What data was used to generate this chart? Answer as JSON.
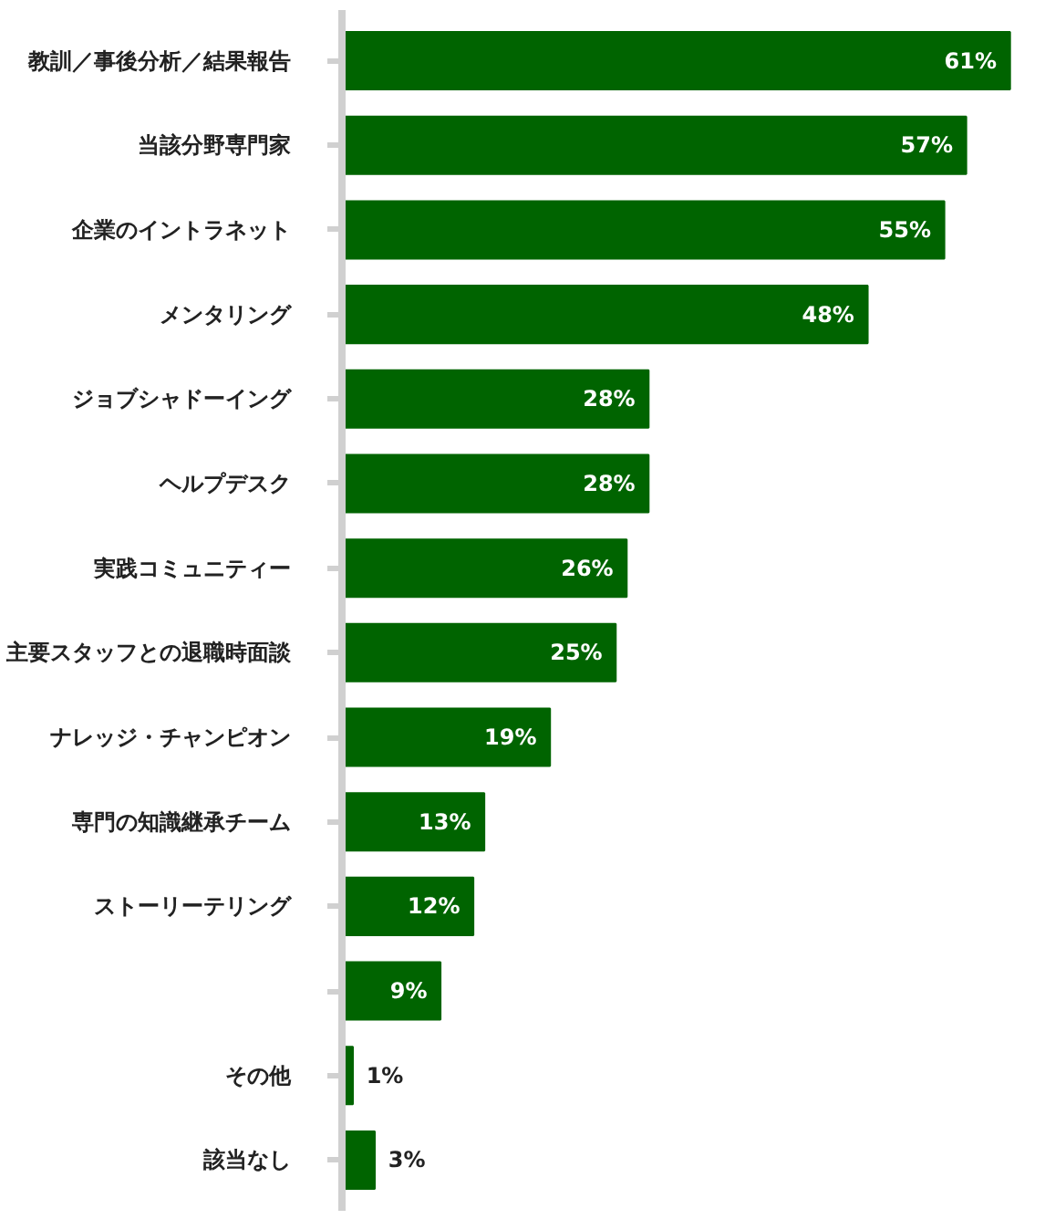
{
  "chart_data": {
    "type": "bar",
    "orientation": "horizontal",
    "data_labels": true,
    "categories": [
      "教訓／事後分析／結果報告",
      "当該分野専門家",
      "企業のイントラネット",
      "メンタリング",
      "ジョブシャドーイング",
      "ヘルプデスク",
      "実践コミュニティー",
      "主要スタッフとの退職時面談",
      "ナレッジ・チャンピオン",
      "専門の知識継承チーム",
      "ストーリーテリング",
      null,
      "その他",
      "該当なし"
    ],
    "values": [
      61,
      57,
      55,
      48,
      28,
      28,
      26,
      25,
      19,
      13,
      12,
      9,
      1,
      3
    ],
    "value_labels": [
      "61%",
      "57%",
      "55%",
      "48%",
      "28%",
      "28%",
      "26%",
      "25%",
      "19%",
      "13%",
      "12%",
      "9%",
      "1%",
      "3%"
    ],
    "color": "#006400"
  }
}
